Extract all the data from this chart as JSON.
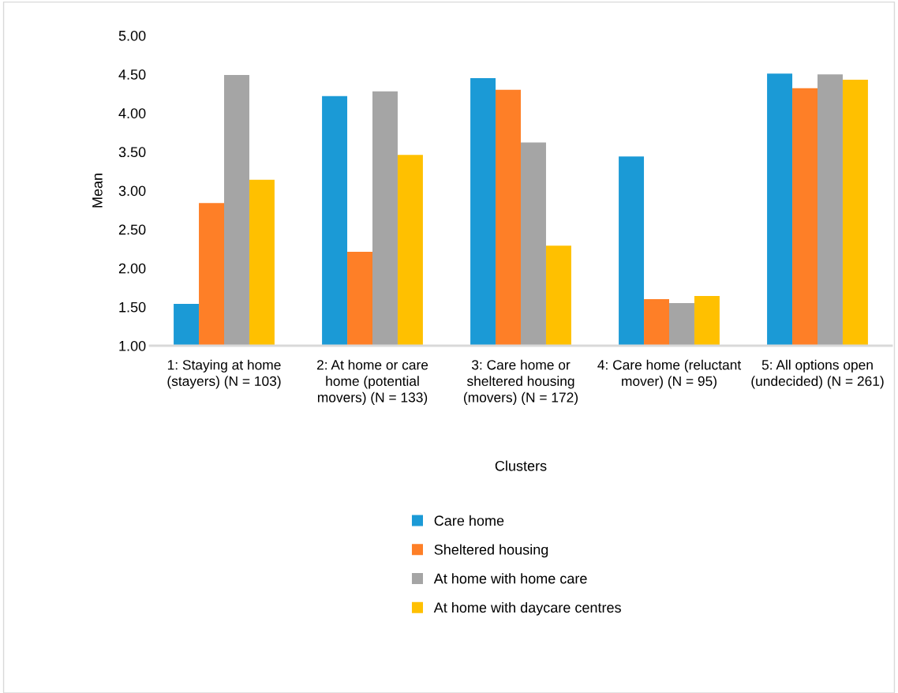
{
  "chart_data": {
    "type": "bar",
    "xlabel": "Clusters",
    "ylabel": "Mean",
    "categories": [
      "1: Staying at home (stayers) (N = 103)",
      "2: At home or care home (potential movers) (N = 133)",
      "3: Care home or sheltered housing (movers) (N = 172)",
      "4: Care home (reluctant mover) (N = 95)",
      "5: All options open (undecided) (N = 261)"
    ],
    "series": [
      {
        "name": "Care home",
        "color": "#1b9ad6",
        "values": [
          1.54,
          4.22,
          4.45,
          3.44,
          4.51
        ]
      },
      {
        "name": "Sheltered housing",
        "color": "#fe7f27",
        "values": [
          2.84,
          2.21,
          4.3,
          1.6,
          4.32
        ]
      },
      {
        "name": "At home with home care",
        "color": "#a5a5a5",
        "values": [
          4.49,
          4.28,
          3.62,
          1.55,
          4.5
        ]
      },
      {
        "name": "At home with daycare centres",
        "color": "#ffc000",
        "values": [
          3.14,
          3.46,
          2.29,
          1.64,
          4.43
        ]
      }
    ],
    "ylim": [
      1.0,
      5.0
    ],
    "yticks": [
      {
        "value": 1.0,
        "label": "1.00"
      },
      {
        "value": 1.5,
        "label": "1.50"
      },
      {
        "value": 2.0,
        "label": "2.00"
      },
      {
        "value": 2.5,
        "label": "2.50"
      },
      {
        "value": 3.0,
        "label": "3.00"
      },
      {
        "value": 3.5,
        "label": "3.50"
      },
      {
        "value": 4.0,
        "label": "4.00"
      },
      {
        "value": 4.5,
        "label": "4.50"
      },
      {
        "value": 5.0,
        "label": "5.00"
      }
    ],
    "grid": false,
    "legend": "bottom"
  }
}
